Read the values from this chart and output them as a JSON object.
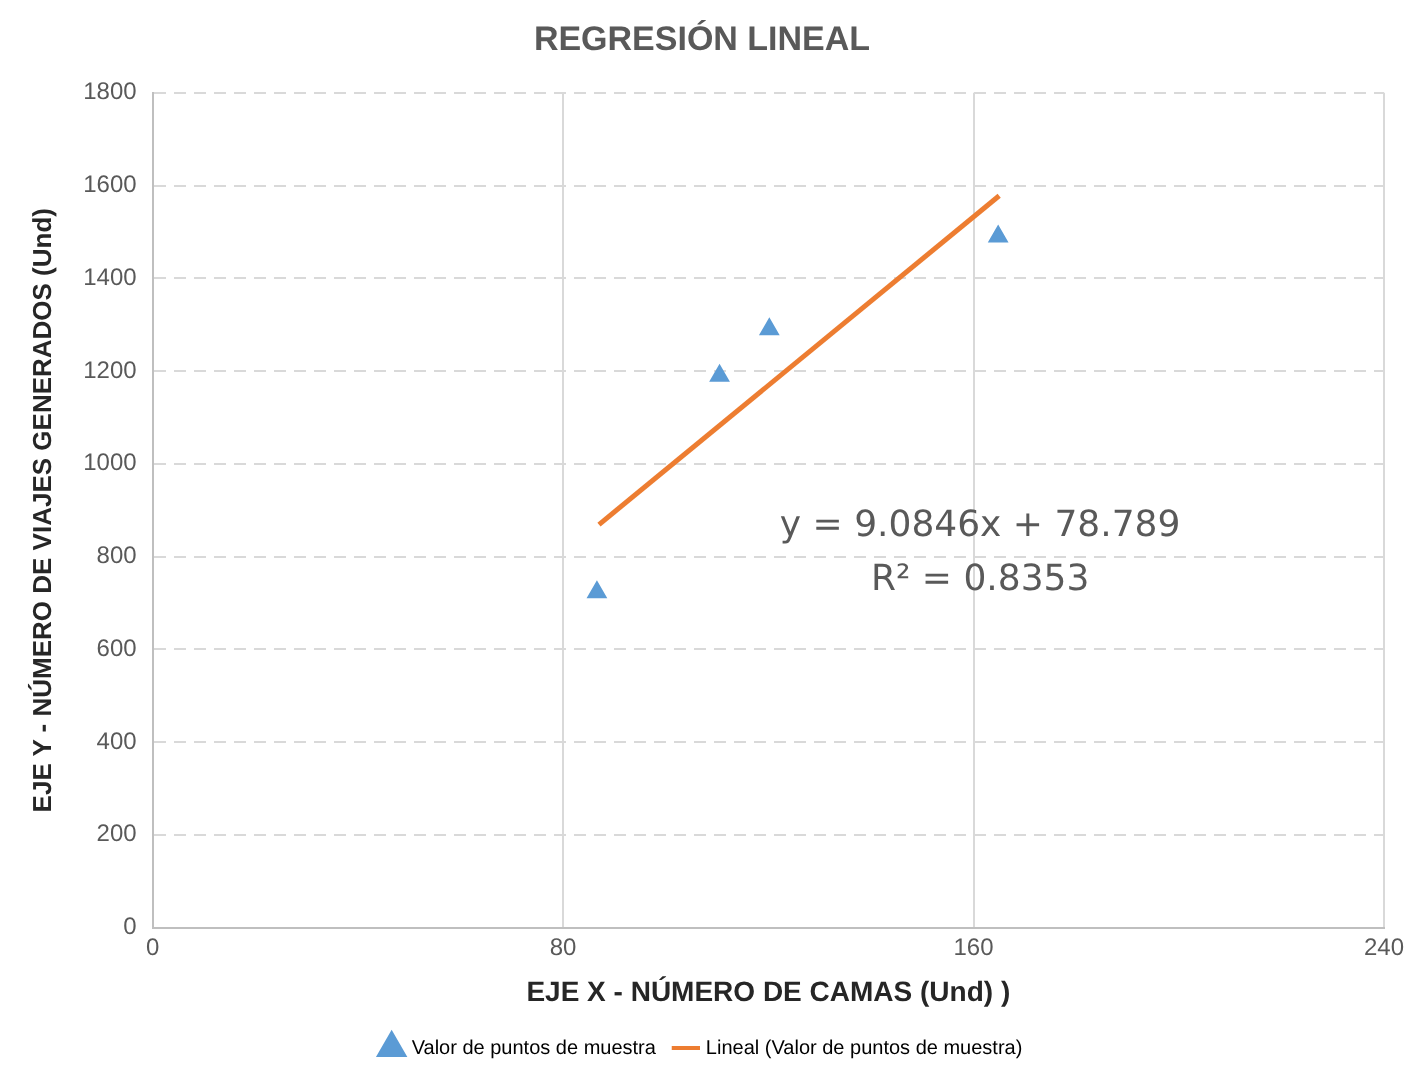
{
  "chart_data": {
    "type": "scatter",
    "title": "REGRESIÓN LINEAL",
    "xlabel": "EJE X - NÚMERO DE CAMAS (Und) )",
    "ylabel": "EJE Y - NÚMERO DE VIAJES GENERADOS (Und)",
    "series": [
      {
        "name": "Valor de puntos de muestra",
        "type": "scatter",
        "color": "#5b9bd5",
        "marker": "triangle",
        "x": [
          86.6,
          110.5,
          120.2,
          164.8
        ],
        "values": [
          723,
          1190,
          1290,
          1490
        ]
      },
      {
        "name": "Lineal (Valor de puntos de muestra)",
        "type": "line",
        "color": "#ed7d31",
        "marker": "none",
        "line_style": "solid",
        "x": [
          87,
          165
        ],
        "values": [
          869,
          1578
        ]
      }
    ],
    "xlim": [
      0,
      240
    ],
    "xticks": [
      0,
      80,
      160,
      240
    ],
    "ylim": [
      0,
      1800
    ],
    "yticks": [
      0,
      200,
      400,
      600,
      800,
      1000,
      1200,
      1400,
      1600,
      1800
    ],
    "grid": true,
    "legend": "bottom",
    "annotations": [
      "y = 9.0846x + 78.789",
      "R² = 0.8353"
    ]
  }
}
